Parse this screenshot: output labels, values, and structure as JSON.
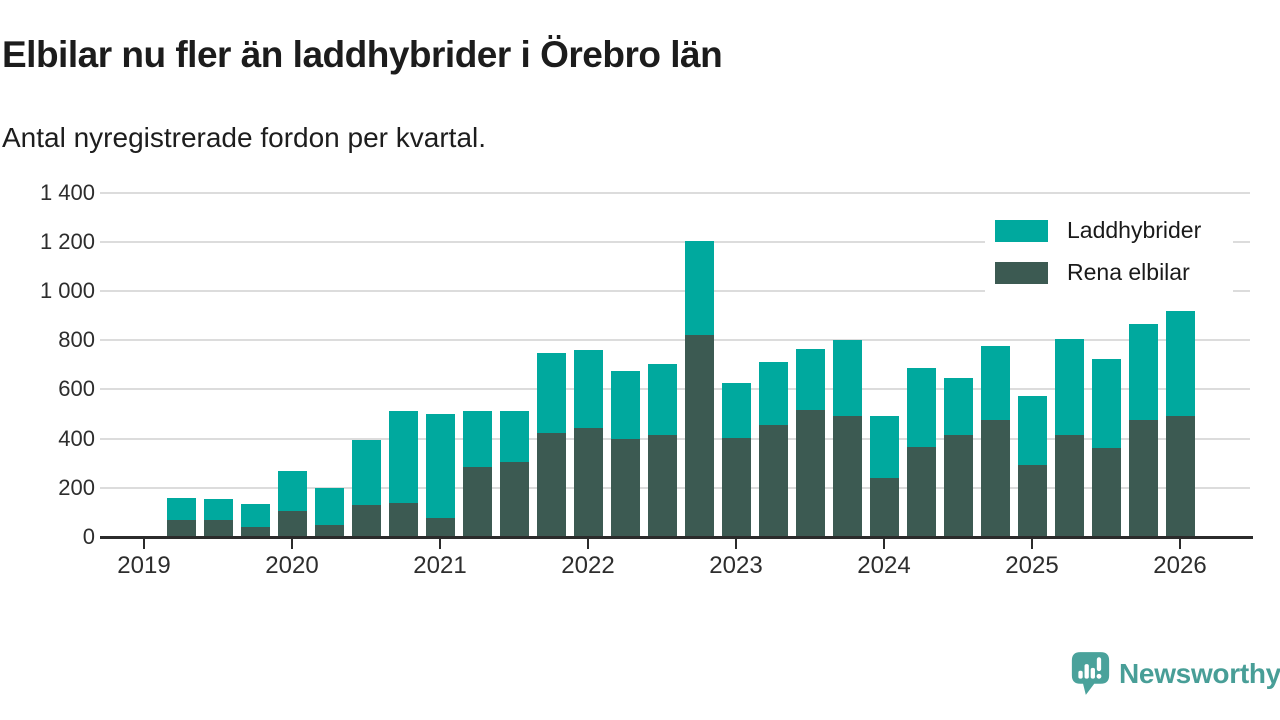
{
  "title": "Elbilar nu fler än laddhybrider i Örebro län",
  "subtitle": "Antal nyregistrerade fordon per kvartal.",
  "chart_data": {
    "type": "bar",
    "stacked": true,
    "title": "Elbilar nu fler än laddhybrider i Örebro län",
    "subtitle": "Antal nyregistrerade fordon per kvartal.",
    "xlabel": "",
    "ylabel": "",
    "ylim": [
      0,
      1400
    ],
    "grid": true,
    "legend_position": "top-right",
    "x": [
      "Q2 2019",
      "Q3 2019",
      "Q4 2019",
      "Q1 2020",
      "Q2 2020",
      "Q3 2020",
      "Q4 2020",
      "Q1 2021",
      "Q2 2021",
      "Q3 2021",
      "Q4 2021",
      "Q1 2022",
      "Q2 2022",
      "Q3 2022",
      "Q4 2022",
      "Q1 2023",
      "Q2 2023",
      "Q3 2023",
      "Q4 2023",
      "Q1 2024",
      "Q2 2024",
      "Q3 2024",
      "Q4 2024",
      "Q1 2025",
      "Q2 2025",
      "Q3 2025",
      "Q4 2025",
      "Q1 2026"
    ],
    "series": [
      {
        "name": "Laddhybrider",
        "color": "#00a99e",
        "values": [
          90,
          85,
          95,
          165,
          150,
          262,
          375,
          424,
          230,
          210,
          326,
          317,
          275,
          289,
          385,
          225,
          255,
          250,
          310,
          255,
          319,
          230,
          304,
          283,
          391,
          360,
          391,
          428
        ]
      },
      {
        "name": "Rena elbilar",
        "color": "#3c5a52",
        "values": [
          70,
          70,
          40,
          105,
          50,
          132,
          137,
          76,
          283,
          303,
          422,
          445,
          400,
          416,
          820,
          402,
          455,
          515,
          490,
          238,
          366,
          415,
          474,
          291,
          414,
          363,
          474,
          490
        ]
      }
    ],
    "yticks": [
      0,
      200,
      400,
      600,
      800,
      1000,
      1200,
      1400
    ],
    "ytick_labels": [
      "0",
      "200",
      "400",
      "600",
      "800",
      "1 000",
      "1 200",
      "1 400"
    ],
    "xtick_labels": [
      "2019",
      "2020",
      "2021",
      "2022",
      "2023",
      "2024",
      "2025",
      "2026"
    ]
  },
  "legend": {
    "items": [
      {
        "label": "Laddhybrider",
        "color": "#00a99e"
      },
      {
        "label": "Rena elbilar",
        "color": "#3c5a52"
      }
    ]
  },
  "footer": {
    "brand": "Newsworthy",
    "brand_color": "#489e97",
    "logo_color": "#4aa29b"
  },
  "colors": {
    "background": "#ffffff",
    "gridline": "#dcdcdc",
    "axis": "#2b2b2b",
    "axis_text": "#2d2d2d",
    "title_text": "#1c1c1c"
  }
}
